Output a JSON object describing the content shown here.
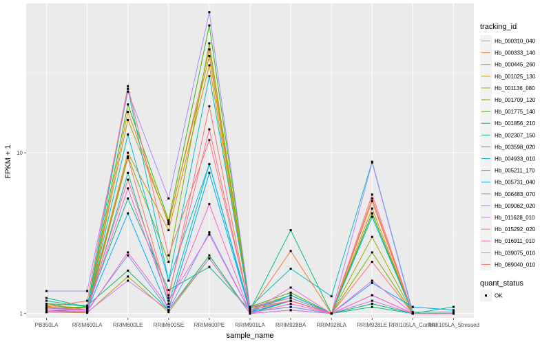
{
  "chart_data": {
    "type": "line",
    "xlabel": "sample_name",
    "ylabel": "FPKM + 1",
    "y_scale": "log10",
    "ylim": [
      0.94,
      85
    ],
    "y_ticks": [
      {
        "value": 1,
        "label": "1"
      },
      {
        "value": 10,
        "label": "10"
      }
    ],
    "grid": true,
    "legend_placement": "right",
    "categories": [
      "PB350LA",
      "RRIM600LA",
      "RRIM600LE",
      "RRIM600SE",
      "RRIM600PE",
      "RRIM901LA",
      "RRIM928BA",
      "RRIM928LA",
      "RRIM928LE",
      "RRII105LA_Control",
      "RRII105LA_Stressed"
    ],
    "legend_title": "tracking_id",
    "shape_legend": {
      "title": "quant_status",
      "items": [
        "OK"
      ]
    },
    "series": [
      {
        "name": "Hb_000310_040",
        "color": "#F8766D",
        "values": [
          1.05,
          1.02,
          9.3,
          1.25,
          19.5,
          1.02,
          1.1,
          1.0,
          2.1,
          1.0,
          1.0
        ]
      },
      {
        "name": "Hb_000333_140",
        "color": "#EA8331",
        "values": [
          1.1,
          1.05,
          18.0,
          3.6,
          44.0,
          1.05,
          2.45,
          1.0,
          5.0,
          1.0,
          1.0
        ]
      },
      {
        "name": "Hb_000445_260",
        "color": "#D89000",
        "values": [
          1.12,
          1.08,
          10.0,
          3.3,
          35.0,
          1.05,
          1.2,
          1.0,
          4.5,
          1.0,
          1.0
        ]
      },
      {
        "name": "Hb_001025_130",
        "color": "#C09B00",
        "values": [
          1.15,
          1.05,
          16.0,
          3.7,
          40.0,
          1.08,
          1.3,
          1.0,
          4.2,
          1.0,
          1.0
        ]
      },
      {
        "name": "Hb_001136_080",
        "color": "#A3A500",
        "values": [
          1.02,
          1.01,
          1.7,
          1.02,
          2.2,
          1.0,
          1.05,
          1.0,
          3.0,
          1.0,
          1.0
        ]
      },
      {
        "name": "Hb_001709_120",
        "color": "#7CAE00",
        "values": [
          1.05,
          1.05,
          9.5,
          2.1,
          48.0,
          1.08,
          1.25,
          1.0,
          2.4,
          1.0,
          1.0
        ]
      },
      {
        "name": "Hb_001775_140",
        "color": "#39B600",
        "values": [
          1.08,
          1.1,
          20.0,
          3.8,
          62.0,
          1.1,
          1.35,
          1.0,
          4.2,
          1.0,
          1.0
        ]
      },
      {
        "name": "Hb_001856_210",
        "color": "#00BB4E",
        "values": [
          1.15,
          1.12,
          1.85,
          1.05,
          2.3,
          1.0,
          1.2,
          1.0,
          1.15,
          1.0,
          1.0
        ]
      },
      {
        "name": "Hb_002307_150",
        "color": "#00BF7D",
        "values": [
          1.25,
          1.1,
          5.2,
          1.4,
          1.95,
          1.05,
          3.3,
          1.0,
          1.1,
          1.0,
          1.1
        ]
      },
      {
        "name": "Hb_003598_020",
        "color": "#00C1A3",
        "values": [
          1.05,
          1.02,
          7.5,
          1.15,
          8.5,
          1.02,
          1.3,
          1.0,
          4.0,
          1.0,
          1.0
        ]
      },
      {
        "name": "Hb_004933_010",
        "color": "#00BFC4",
        "values": [
          1.2,
          1.1,
          25.0,
          1.6,
          30.0,
          1.1,
          1.9,
          1.28,
          8.8,
          1.02,
          1.02
        ]
      },
      {
        "name": "Hb_005211_170",
        "color": "#00B8E7",
        "values": [
          1.08,
          1.05,
          13.0,
          1.6,
          8.5,
          1.05,
          1.3,
          1.0,
          4.0,
          1.0,
          1.0
        ]
      },
      {
        "name": "Hb_005731_040",
        "color": "#00A9FF",
        "values": [
          1.05,
          1.05,
          4.2,
          1.05,
          7.5,
          1.02,
          1.2,
          1.0,
          1.55,
          1.1,
          1.05
        ]
      },
      {
        "name": "Hb_006483_070",
        "color": "#619CFF",
        "values": [
          1.08,
          1.05,
          2.3,
          1.05,
          3.2,
          1.02,
          1.1,
          1.0,
          1.3,
          1.0,
          1.0
        ]
      },
      {
        "name": "Hb_009062_020",
        "color": "#AE87FF",
        "values": [
          1.38,
          1.38,
          24.0,
          5.2,
          75.0,
          1.1,
          1.25,
          1.0,
          8.7,
          1.0,
          1.0
        ]
      },
      {
        "name": "Hb_011628_010",
        "color": "#DB72FB",
        "values": [
          1.02,
          1.02,
          1.6,
          1.05,
          2.2,
          1.0,
          1.05,
          1.0,
          1.2,
          1.0,
          1.0
        ]
      },
      {
        "name": "Hb_015292_020",
        "color": "#F564E3",
        "values": [
          1.05,
          1.05,
          6.0,
          1.2,
          3.1,
          1.02,
          1.45,
          1.0,
          1.6,
          1.0,
          1.0
        ]
      },
      {
        "name": "Hb_016911_010",
        "color": "#FF61C3",
        "values": [
          1.03,
          1.03,
          2.4,
          1.1,
          4.8,
          1.0,
          1.15,
          1.0,
          1.3,
          1.0,
          1.0
        ]
      },
      {
        "name": "Hb_039075_010",
        "color": "#FF6C91",
        "values": [
          1.08,
          1.08,
          6.8,
          1.3,
          14.0,
          1.05,
          1.2,
          1.0,
          5.5,
          1.0,
          1.0
        ]
      },
      {
        "name": "Hb_089040_010",
        "color": "#F8766D",
        "values": [
          1.1,
          1.2,
          26.0,
          2.3,
          12.0,
          1.08,
          1.2,
          1.0,
          5.2,
          1.0,
          1.0
        ]
      }
    ]
  }
}
